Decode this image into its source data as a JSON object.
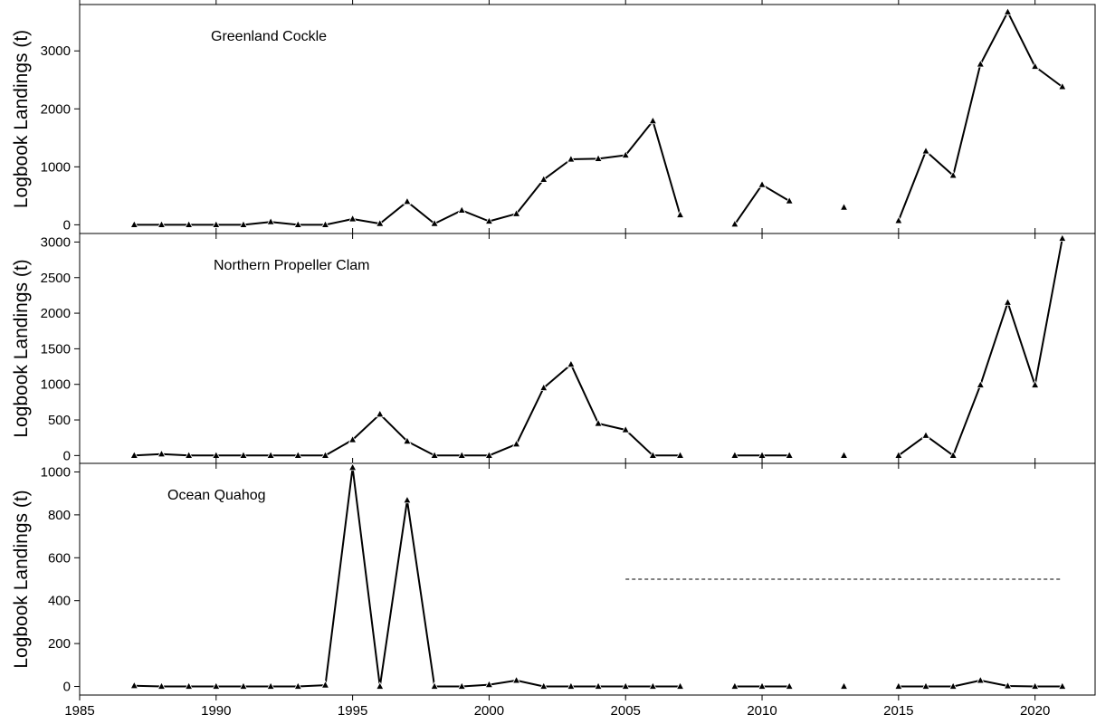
{
  "figure": {
    "ylabel": "Logbook Landings (t)",
    "x_ticks": [
      1985,
      1990,
      1995,
      2000,
      2005,
      2010,
      2015,
      2020
    ],
    "xlim": [
      1985,
      2022.2
    ]
  },
  "chart_data": [
    {
      "type": "line",
      "annotation": "Greenland Cockle",
      "ylabel": "Logbook Landings (t)",
      "ylim": [
        -150,
        3800
      ],
      "y_ticks": [
        0,
        1000,
        2000,
        3000
      ],
      "x": [
        1987,
        1988,
        1989,
        1990,
        1991,
        1992,
        1993,
        1994,
        1995,
        1996,
        1997,
        1998,
        1999,
        2000,
        2001,
        2002,
        2003,
        2004,
        2005,
        2006,
        2007,
        2008,
        2009,
        2010,
        2011,
        2012,
        2013,
        2014,
        2015,
        2016,
        2017,
        2018,
        2019,
        2020,
        2021
      ],
      "values": [
        0,
        0,
        0,
        0,
        0,
        50,
        0,
        0,
        100,
        20,
        400,
        20,
        250,
        60,
        190,
        780,
        1130,
        1140,
        1200,
        1790,
        170,
        null,
        10,
        690,
        410,
        null,
        300,
        null,
        70,
        1270,
        850,
        2770,
        3670,
        2730,
        2380
      ]
    },
    {
      "type": "line",
      "annotation": "Northern Propeller Clam",
      "ylabel": "Logbook Landings (t)",
      "ylim": [
        -110,
        3120
      ],
      "y_ticks": [
        0,
        500,
        1000,
        1500,
        2000,
        2500,
        3000
      ],
      "x": [
        1987,
        1988,
        1989,
        1990,
        1991,
        1992,
        1993,
        1994,
        1995,
        1996,
        1997,
        1998,
        1999,
        2000,
        2001,
        2002,
        2003,
        2004,
        2005,
        2006,
        2007,
        2008,
        2009,
        2010,
        2011,
        2012,
        2013,
        2014,
        2015,
        2016,
        2017,
        2018,
        2019,
        2020,
        2021
      ],
      "values": [
        0,
        20,
        0,
        0,
        0,
        0,
        0,
        0,
        220,
        580,
        200,
        0,
        0,
        0,
        160,
        950,
        1280,
        450,
        360,
        0,
        0,
        null,
        0,
        0,
        0,
        null,
        0,
        null,
        0,
        280,
        0,
        990,
        2150,
        990,
        3050
      ]
    },
    {
      "type": "line",
      "annotation": "Ocean Quahog",
      "ylabel": "Logbook Landings (t)",
      "ylim": [
        -40,
        1040
      ],
      "y_ticks": [
        0,
        200,
        400,
        600,
        800,
        1000
      ],
      "x": [
        1987,
        1988,
        1989,
        1990,
        1991,
        1992,
        1993,
        1994,
        1995,
        1996,
        1997,
        1998,
        1999,
        2000,
        2001,
        2002,
        2003,
        2004,
        2005,
        2006,
        2007,
        2008,
        2009,
        2010,
        2011,
        2012,
        2013,
        2014,
        2015,
        2016,
        2017,
        2018,
        2019,
        2020,
        2021
      ],
      "values": [
        3,
        0,
        0,
        0,
        0,
        0,
        0,
        6,
        1020,
        0,
        868,
        0,
        0,
        8,
        28,
        0,
        0,
        0,
        0,
        0,
        0,
        null,
        0,
        0,
        0,
        null,
        0,
        null,
        0,
        0,
        0,
        28,
        2,
        0,
        0
      ],
      "reference_line": {
        "x": [
          2005,
          2021
        ],
        "y": 500,
        "style": "dashed"
      }
    }
  ]
}
